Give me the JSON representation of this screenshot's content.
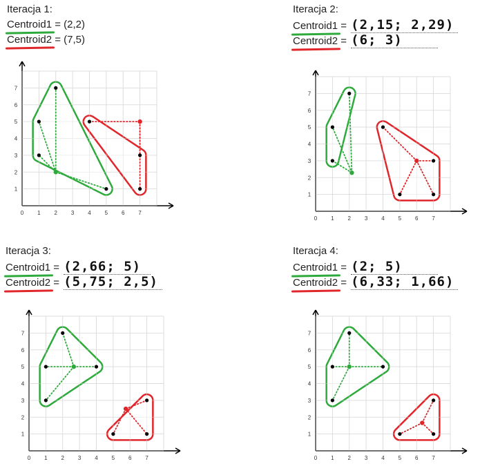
{
  "panels": [
    {
      "title": "Iteracja 1:",
      "c1_label": "Centroid1",
      "c1_value": "= (2,2)",
      "c2_label": "Centroid2",
      "c2_value": "= (7,5)",
      "handwritten": false,
      "ticks_x": [
        "0",
        "1",
        "2",
        "3",
        "4",
        "5",
        "6",
        "7"
      ],
      "ticks_y": [
        "0",
        "1",
        "2",
        "3",
        "4",
        "5",
        "6",
        "7"
      ],
      "points": [
        [
          2,
          7
        ],
        [
          1,
          5
        ],
        [
          1,
          3
        ],
        [
          5,
          1
        ],
        [
          4,
          5
        ],
        [
          7,
          3
        ],
        [
          7,
          1
        ]
      ],
      "centroids": [
        {
          "x": 2,
          "y": 2,
          "color": "#2eaa3c"
        },
        {
          "x": 7,
          "y": 5,
          "color": "#e0262a"
        }
      ],
      "cluster_green": [
        [
          2,
          7
        ],
        [
          1,
          5
        ],
        [
          1,
          3
        ],
        [
          5,
          1
        ]
      ],
      "cluster_red": [
        [
          4,
          5
        ],
        [
          7,
          3
        ],
        [
          7,
          1
        ]
      ]
    },
    {
      "title": "Iteracja 2:",
      "c1_label": "Centroid1",
      "c1_value": "(2,15; 2,29)",
      "c2_label": "Centroid2",
      "c2_value": "(6; 3)",
      "handwritten": true,
      "ticks_x": [
        "0",
        "1",
        "2",
        "3",
        "4",
        "5",
        "6",
        "7"
      ],
      "ticks_y": [
        "0",
        "1",
        "2",
        "3",
        "4",
        "5",
        "6",
        "7"
      ],
      "points": [
        [
          2,
          7
        ],
        [
          1,
          5
        ],
        [
          1,
          3
        ],
        [
          4,
          5
        ],
        [
          7,
          3
        ],
        [
          5,
          1
        ],
        [
          7,
          1
        ]
      ],
      "centroids": [
        {
          "x": 2.15,
          "y": 2.29,
          "color": "#2eaa3c"
        },
        {
          "x": 6,
          "y": 3,
          "color": "#e0262a"
        }
      ],
      "cluster_green": [
        [
          2,
          7
        ],
        [
          1,
          5
        ],
        [
          1,
          3
        ]
      ],
      "cluster_red": [
        [
          4,
          5
        ],
        [
          7,
          3
        ],
        [
          5,
          1
        ],
        [
          7,
          1
        ]
      ]
    },
    {
      "title": "Iteracja 3:",
      "c1_label": "Centroid1",
      "c1_value": "(2,66; 5)",
      "c2_label": "Centroid2",
      "c2_value": "(5,75; 2,5)",
      "handwritten": true,
      "ticks_x": [
        "0",
        "1",
        "2",
        "3",
        "4",
        "5",
        "6",
        "7"
      ],
      "ticks_y": [
        "0",
        "1",
        "2",
        "3",
        "4",
        "5",
        "6",
        "7"
      ],
      "points": [
        [
          2,
          7
        ],
        [
          1,
          5
        ],
        [
          4,
          5
        ],
        [
          1,
          3
        ],
        [
          7,
          3
        ],
        [
          5,
          1
        ],
        [
          7,
          1
        ]
      ],
      "centroids": [
        {
          "x": 2.66,
          "y": 5,
          "color": "#2eaa3c"
        },
        {
          "x": 5.75,
          "y": 2.5,
          "color": "#e0262a"
        }
      ],
      "cluster_green": [
        [
          2,
          7
        ],
        [
          1,
          5
        ],
        [
          4,
          5
        ],
        [
          1,
          3
        ]
      ],
      "cluster_red": [
        [
          7,
          3
        ],
        [
          5,
          1
        ],
        [
          7,
          1
        ]
      ]
    },
    {
      "title": "Iteracja 4:",
      "c1_label": "Centroid1",
      "c1_value": "(2; 5)",
      "c2_label": "Centroid2",
      "c2_value": "(6,33; 1,66)",
      "handwritten": true,
      "ticks_x": [
        "0",
        "1",
        "2",
        "3",
        "4",
        "5",
        "6",
        "7"
      ],
      "ticks_y": [
        "0",
        "1",
        "2",
        "3",
        "4",
        "5",
        "6",
        "7"
      ],
      "points": [
        [
          2,
          7
        ],
        [
          1,
          5
        ],
        [
          4,
          5
        ],
        [
          1,
          3
        ],
        [
          7,
          3
        ],
        [
          5,
          1
        ],
        [
          7,
          1
        ]
      ],
      "centroids": [
        {
          "x": 2,
          "y": 5,
          "color": "#2eaa3c"
        },
        {
          "x": 6.33,
          "y": 1.66,
          "color": "#e0262a"
        }
      ],
      "cluster_green": [
        [
          2,
          7
        ],
        [
          1,
          5
        ],
        [
          4,
          5
        ],
        [
          1,
          3
        ]
      ],
      "cluster_red": [
        [
          7,
          3
        ],
        [
          5,
          1
        ],
        [
          7,
          1
        ]
      ]
    }
  ],
  "colors": {
    "green": "#2eaa3c",
    "red": "#e0262a",
    "grid": "#d9d9d9",
    "axis": "#000000"
  }
}
